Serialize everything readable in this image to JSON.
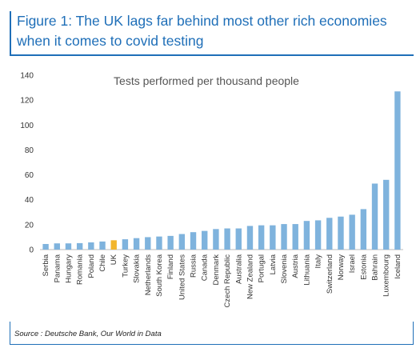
{
  "figure": {
    "title": "Figure 1: The UK lags far behind most other rich economies when it comes to covid testing",
    "source": "Source : Deutsche Bank, Our World in Data"
  },
  "colors": {
    "accent": "#1f6fb8",
    "bar": "#7fb3dd",
    "highlight": "#f2b52c"
  },
  "chart_data": {
    "type": "bar",
    "title": "Tests performed per thousand people",
    "xlabel": "",
    "ylabel": "",
    "ylim": [
      0,
      140
    ],
    "yticks": [
      0,
      20,
      40,
      60,
      80,
      100,
      120,
      140
    ],
    "grid": false,
    "highlight_category": "UK",
    "categories": [
      "Serbia",
      "Panama",
      "Hungary",
      "Romania",
      "Poland",
      "Chile",
      "UK",
      "Turkey",
      "Slovakia",
      "Netherlands",
      "South Korea",
      "Finland",
      "United States",
      "Russia",
      "Canada",
      "Denmark",
      "Czech Republic",
      "Australia",
      "New Zealand",
      "Portugal",
      "Latvia",
      "Slovenia",
      "Austria",
      "Lithuania",
      "Italy",
      "Switzerland",
      "Norway",
      "Israel",
      "Estonia",
      "Bahrain",
      "Luxembourg",
      "Iceland"
    ],
    "values": [
      4.5,
      5,
      5,
      5.2,
      5.8,
      6.5,
      7.5,
      8.3,
      9.2,
      10,
      10.5,
      11,
      12.5,
      14,
      15,
      16.5,
      17,
      17,
      19,
      19.5,
      19.5,
      20.5,
      20.5,
      23,
      23.5,
      25.5,
      26.5,
      28,
      32.5,
      53,
      56,
      127
    ]
  }
}
